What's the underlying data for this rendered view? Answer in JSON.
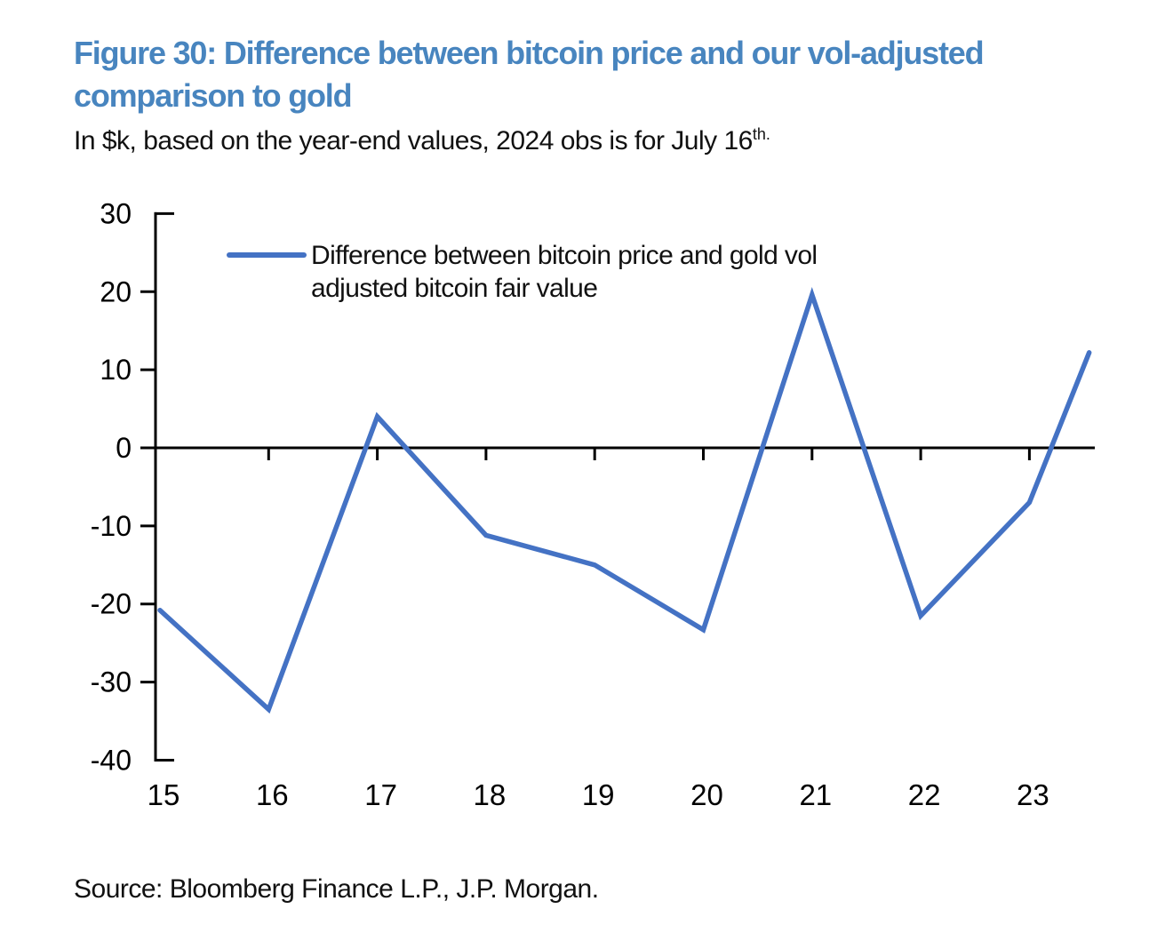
{
  "figure": {
    "title": "Figure 30: Difference between bitcoin price and our vol-adjusted comparison to gold",
    "title_color": "#4885BF",
    "subtitle_main": "In $k, based on the year-end values, 2024 obs is for July 16",
    "subtitle_sup": "th.",
    "source": "Source: Bloomberg Finance L.P., J.P. Morgan."
  },
  "chart_data": {
    "type": "line",
    "title": "Figure 30: Difference between bitcoin price and our vol-adjusted comparison to gold",
    "subtitle": "In $k, based on the year-end values, 2024 obs is for July 16th.",
    "legend": [
      "Difference between bitcoin price and gold vol adjusted bitcoin fair value"
    ],
    "legend_position": "top-left-inside",
    "line_color": "#4472C4",
    "axis_color": "#000000",
    "grid": false,
    "ylabel": "",
    "xlabel": "",
    "ylim": [
      -40,
      30
    ],
    "y_ticks": [
      30,
      20,
      10,
      0,
      -10,
      -20,
      -30,
      -40
    ],
    "x_tick_labels": [
      "15",
      "16",
      "17",
      "18",
      "19",
      "20",
      "21",
      "22",
      "23"
    ],
    "points": [
      {
        "label": "2015",
        "t": 0,
        "value": -20.8
      },
      {
        "label": "2016",
        "t": 1,
        "value": -33.5
      },
      {
        "label": "2017",
        "t": 2,
        "value": 4.0
      },
      {
        "label": "2018",
        "t": 3,
        "value": -11.2
      },
      {
        "label": "2019",
        "t": 4,
        "value": -15.0
      },
      {
        "label": "2020",
        "t": 5,
        "value": -23.3
      },
      {
        "label": "2021",
        "t": 6,
        "value": 19.6
      },
      {
        "label": "2022",
        "t": 7,
        "value": -21.5
      },
      {
        "label": "2023",
        "t": 8,
        "value": -7.0
      },
      {
        "label": "2024-07-16",
        "t": 8.55,
        "value": 12.2
      }
    ]
  }
}
